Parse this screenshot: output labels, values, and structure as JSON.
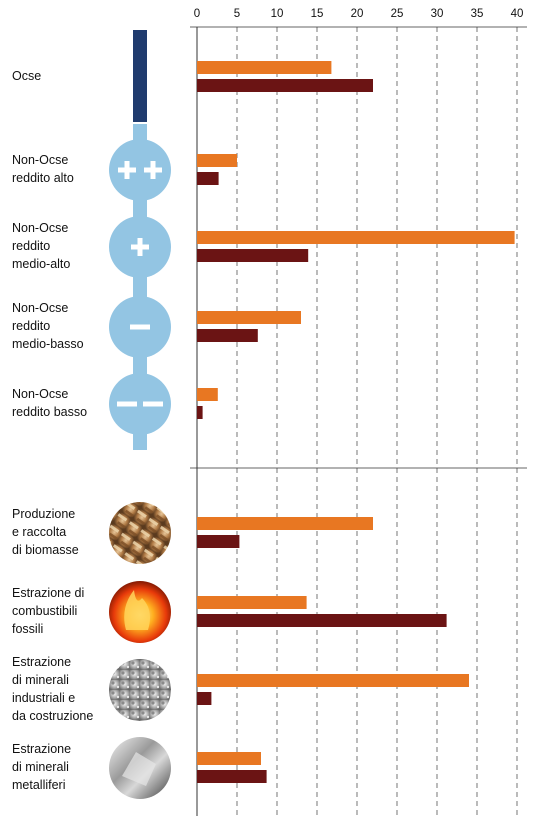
{
  "chart_data": {
    "type": "bar",
    "orientation": "horizontal",
    "xlim": [
      0,
      40
    ],
    "x_ticks": [
      "0",
      "5",
      "10",
      "15",
      "20",
      "25",
      "30",
      "35",
      "40"
    ],
    "grid": true,
    "colors": {
      "series_1": "#e87722",
      "series_2": "#6b1414",
      "region_icon": "#93c5e3",
      "oecd_icon": "#1f3b6e"
    },
    "groups": [
      {
        "title": "",
        "categories": [
          {
            "lines": [
              "Ocse"
            ],
            "icon": "oecd-bar-icon",
            "values": [
              16.8,
              22
            ]
          },
          {
            "lines": [
              "Non-Ocse",
              "reddito alto"
            ],
            "icon": "double-plus-icon",
            "values": [
              5,
              2.7
            ]
          },
          {
            "lines": [
              "Non-Ocse",
              "reddito",
              "medio-alto"
            ],
            "icon": "plus-icon",
            "values": [
              39.7,
              13.9
            ]
          },
          {
            "lines": [
              "Non-Ocse",
              "reddito",
              "medio-basso"
            ],
            "icon": "minus-icon",
            "values": [
              13,
              7.6
            ]
          },
          {
            "lines": [
              "Non-Ocse",
              "reddito basso"
            ],
            "icon": "double-minus-icon",
            "values": [
              2.6,
              0.7
            ]
          }
        ]
      },
      {
        "title": "",
        "categories": [
          {
            "lines": [
              "Produzione",
              "e raccolta",
              "di biomasse"
            ],
            "icon": "biomass-photo-icon",
            "values": [
              22,
              5.3
            ]
          },
          {
            "lines": [
              "Estrazione di",
              "combustibili",
              "fossili"
            ],
            "icon": "fire-photo-icon",
            "values": [
              13.7,
              31.2
            ]
          },
          {
            "lines": [
              "Estrazione",
              "di minerali",
              "industriali e",
              "da costruzione"
            ],
            "icon": "minerals-photo-icon",
            "values": [
              34,
              1.8
            ]
          },
          {
            "lines": [
              "Estrazione",
              "di minerali",
              "metalliferi"
            ],
            "icon": "metal-ore-photo-icon",
            "values": [
              8,
              8.7
            ]
          }
        ]
      }
    ]
  }
}
